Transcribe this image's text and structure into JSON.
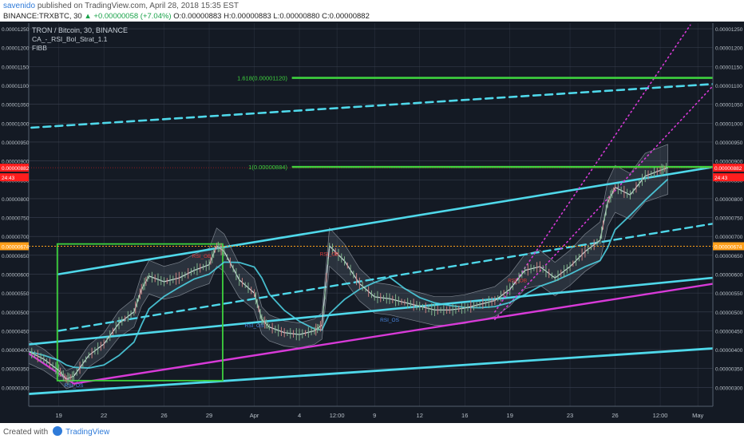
{
  "header": {
    "author": "savenido",
    "published_text": "published on TradingView.com, April 28, 2018 15:35 EST",
    "symbol_line_prefix": "BINANCE:TRXBTC, 30",
    "change_text": "▲ +0.00000058 (+7.04%)",
    "ohlc_text": "O:0.00000883 H:0.00000883 L:0.00000880 C:0.00000882"
  },
  "legend": {
    "title": "TRON / Bitcoin, 30, BINANCE",
    "indicator1": "CA_-_RSI_Bol_Strat_1.1",
    "indicator2": "FIBB"
  },
  "footer": {
    "created_with": "Created with",
    "brand": "TradingView"
  },
  "colors": {
    "background": "#141a24",
    "grid": "#3a4250",
    "cyan": "#4fd8ea",
    "magenta": "#d83ad8",
    "green": "#3ed13e",
    "candle": "#c6d6d8",
    "bb_fill": "#7c8a96",
    "last_price": "#ff1e1e",
    "orange": "#ff9f1a",
    "rsi_blue": "#4a89e6",
    "rsi_red": "#e13a3a"
  },
  "chart_data": {
    "type": "line",
    "symbol": "TRXBTC",
    "exchange": "BINANCE",
    "timeframe": "30",
    "ylim": [
      2.5e-06,
      1.265e-05
    ],
    "y_ticks": [
      3e-06,
      3.5e-06,
      4e-06,
      4.5e-06,
      5e-06,
      5.5e-06,
      6e-06,
      6.5e-06,
      7e-06,
      7.5e-06,
      8e-06,
      8.5e-06,
      9e-06,
      9.5e-06,
      1e-05,
      1.05e-05,
      1.1e-05,
      1.15e-05,
      1.2e-05,
      1.25e-05
    ],
    "y_tick_labels": [
      "0.00000300",
      "0.00000350",
      "0.00000400",
      "0.00000450",
      "0.00000500",
      "0.00000550",
      "0.00000600",
      "0.00000650",
      "0.00000700",
      "0.00000750",
      "0.00000800",
      "0.00000850",
      "0.00000900",
      "0.00000950",
      "0.00001000",
      "0.00001050",
      "0.00001100",
      "0.00001150",
      "0.00001200",
      "0.00001250"
    ],
    "x_range_days": [
      0,
      36.5
    ],
    "x_ticks": [
      {
        "day": 2,
        "label": "19"
      },
      {
        "day": 5,
        "label": "22"
      },
      {
        "day": 9,
        "label": "26"
      },
      {
        "day": 12,
        "label": "29"
      },
      {
        "day": 15,
        "label": "Apr"
      },
      {
        "day": 18,
        "label": "4"
      },
      {
        "day": 20.5,
        "label": "12:00"
      },
      {
        "day": 23,
        "label": "9"
      },
      {
        "day": 26,
        "label": "12"
      },
      {
        "day": 29,
        "label": "16"
      },
      {
        "day": 32,
        "label": "19"
      },
      {
        "day": 36,
        "label": "23"
      },
      {
        "day": 39,
        "label": "26"
      },
      {
        "day": 42,
        "label": "12:00"
      },
      {
        "day": 44.5,
        "label": "May"
      }
    ],
    "price_series": [
      [
        0,
        3.95e-06
      ],
      [
        1,
        3.75e-06
      ],
      [
        2,
        3.45e-06
      ],
      [
        2.5,
        3.22e-06
      ],
      [
        3,
        3.3e-06
      ],
      [
        4,
        3.85e-06
      ],
      [
        5,
        4.15e-06
      ],
      [
        6,
        4.7e-06
      ],
      [
        7,
        5e-06
      ],
      [
        7.5,
        5.6e-06
      ],
      [
        8,
        5.95e-06
      ],
      [
        9,
        5.8e-06
      ],
      [
        10,
        5.9e-06
      ],
      [
        11,
        6.1e-06
      ],
      [
        12,
        6.25e-06
      ],
      [
        12.5,
        6.75e-06
      ],
      [
        13,
        6.6e-06
      ],
      [
        14,
        5.85e-06
      ],
      [
        15,
        5.5e-06
      ],
      [
        15.5,
        4.8e-06
      ],
      [
        16,
        4.6e-06
      ],
      [
        17,
        4.45e-06
      ],
      [
        18,
        4.4e-06
      ],
      [
        19,
        4.5e-06
      ],
      [
        19.5,
        4.65e-06
      ],
      [
        20,
        6.75e-06
      ],
      [
        21,
        6.35e-06
      ],
      [
        22,
        5.75e-06
      ],
      [
        23,
        5.4e-06
      ],
      [
        24,
        5.35e-06
      ],
      [
        25,
        5.25e-06
      ],
      [
        26,
        5.15e-06
      ],
      [
        27,
        5.05e-06
      ],
      [
        28,
        5.05e-06
      ],
      [
        29,
        5.1e-06
      ],
      [
        30,
        5.2e-06
      ],
      [
        31,
        5.3e-06
      ],
      [
        32,
        5.6e-06
      ],
      [
        33,
        6.1e-06
      ],
      [
        34,
        6.2e-06
      ],
      [
        35,
        5.9e-06
      ],
      [
        36,
        6.2e-06
      ],
      [
        37,
        6.6e-06
      ],
      [
        38,
        6.9e-06
      ],
      [
        38.5,
        7.9e-06
      ],
      [
        39,
        8.3e-06
      ],
      [
        40,
        8.1e-06
      ],
      [
        41,
        8.6e-06
      ],
      [
        42,
        8.75e-06
      ],
      [
        42.5,
        8.82e-06
      ]
    ],
    "last_price": 8.82e-06,
    "last_price_label": "0.00000882",
    "countdown_label": "24:43",
    "orange_line": 6.74e-06,
    "orange_line_label": "0.00000674",
    "fib_levels": [
      {
        "label": "1.618(0.00001120)",
        "value": 1.12e-05
      },
      {
        "label": "1(0.00000884)",
        "value": 8.84e-06
      }
    ],
    "rsi_labels": [
      {
        "text": "RSI_OS",
        "day": 3,
        "value": 3.22e-06,
        "color": "blue"
      },
      {
        "text": "RSI_OB",
        "day": 11.5,
        "value": 6.35e-06,
        "color": "red"
      },
      {
        "text": "RSI_OS",
        "day": 15,
        "value": 4.8e-06,
        "color": "blue"
      },
      {
        "text": "RSI_OB",
        "day": 20,
        "value": 6.4e-06,
        "color": "red"
      },
      {
        "text": "RSI_OS",
        "day": 24,
        "value": 4.95e-06,
        "color": "blue"
      },
      {
        "text": "RSI_OB",
        "day": 32.5,
        "value": 5.7e-06,
        "color": "red"
      }
    ]
  }
}
